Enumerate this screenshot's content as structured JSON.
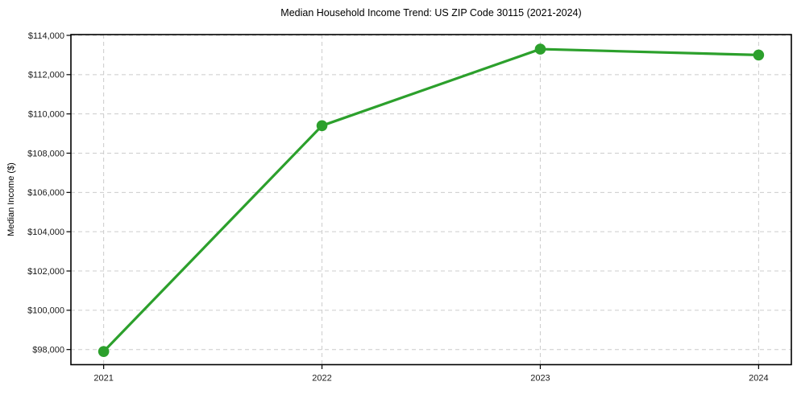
{
  "chart_data": {
    "type": "line",
    "title": "Median Household Income Trend: US ZIP Code 30115 (2021-2024)",
    "xlabel": "",
    "ylabel": "Median Income ($)",
    "x": [
      2021,
      2022,
      2023,
      2024
    ],
    "xtick_labels": [
      "2021",
      "2022",
      "2023",
      "2024"
    ],
    "values": [
      97900,
      109400,
      113300,
      113000
    ],
    "ytick_values": [
      98000,
      100000,
      102000,
      104000,
      106000,
      108000,
      110000,
      112000,
      114000
    ],
    "ytick_labels": [
      "$98,000",
      "$100,000",
      "$102,000",
      "$104,000",
      "$106,000",
      "$108,000",
      "$110,000",
      "$112,000",
      "$114,000"
    ],
    "xlim": [
      2020.85,
      2024.15
    ],
    "ylim": [
      97230,
      114040
    ],
    "grid": {
      "visible": true,
      "style": "dashed",
      "color": "#cccccc"
    },
    "legend": "none",
    "line_color": "#2ca02c",
    "marker": "circle",
    "background_color": "#ffffff",
    "spine_color": "#000000",
    "tick_label_color": "#1a1a1a"
  }
}
